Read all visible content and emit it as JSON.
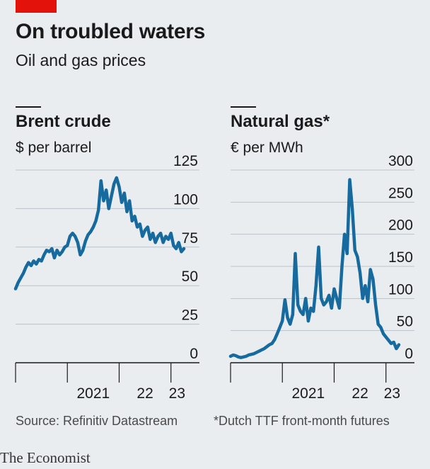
{
  "header": {
    "title": "On troubled waters",
    "subtitle": "Oil and gas prices"
  },
  "chart_data": [
    {
      "type": "line",
      "title": "Brent crude",
      "ylabel": "$ per barrel",
      "ylim": [
        0,
        125
      ],
      "yticks": [
        "125",
        "100",
        "75",
        "50",
        "25",
        "0"
      ],
      "xticks": [
        "2021",
        "22",
        "23"
      ],
      "series": [
        {
          "color": "#176a9e",
          "x": [
            2020.0,
            2020.05,
            2020.1,
            2020.15,
            2020.2,
            2020.25,
            2020.3,
            2020.35,
            2020.4,
            2020.45,
            2020.5,
            2020.55,
            2020.6,
            2020.65,
            2020.7,
            2020.75,
            2020.8,
            2020.85,
            2020.9,
            2020.95,
            2021.0,
            2021.05,
            2021.1,
            2021.15,
            2021.2,
            2021.25,
            2021.3,
            2021.35,
            2021.4,
            2021.45,
            2021.5,
            2021.55,
            2021.6,
            2021.65,
            2021.7,
            2021.75,
            2021.8,
            2021.85,
            2021.9,
            2021.95,
            2022.0,
            2022.05,
            2022.1,
            2022.15,
            2022.2,
            2022.25,
            2022.3,
            2022.35,
            2022.4,
            2022.45,
            2022.5,
            2022.55,
            2022.6,
            2022.65,
            2022.7,
            2022.75,
            2022.8,
            2022.85,
            2022.9,
            2022.95,
            2023.0,
            2023.05,
            2023.1,
            2023.15,
            2023.2,
            2023.25
          ],
          "values": [
            48,
            52,
            55,
            58,
            62,
            65,
            63,
            66,
            64,
            67,
            66,
            70,
            73,
            72,
            74,
            68,
            73,
            70,
            72,
            75,
            76,
            82,
            84,
            82,
            78,
            70,
            73,
            79,
            83,
            85,
            88,
            92,
            99,
            118,
            105,
            112,
            100,
            108,
            116,
            120,
            114,
            104,
            110,
            98,
            105,
            92,
            95,
            88,
            90,
            82,
            86,
            88,
            80,
            84,
            78,
            82,
            84,
            78,
            82,
            80,
            84,
            76,
            74,
            78,
            72,
            74
          ]
        }
      ]
    },
    {
      "type": "line",
      "title": "Natural gas*",
      "ylabel": "€ per MWh",
      "ylim": [
        0,
        300
      ],
      "yticks": [
        "300",
        "250",
        "200",
        "150",
        "100",
        "50",
        "0"
      ],
      "xticks": [
        "2021",
        "22",
        "23"
      ],
      "series": [
        {
          "color": "#176a9e",
          "x": [
            2020.0,
            2020.05,
            2020.1,
            2020.15,
            2020.2,
            2020.25,
            2020.3,
            2020.35,
            2020.4,
            2020.45,
            2020.5,
            2020.55,
            2020.6,
            2020.65,
            2020.7,
            2020.75,
            2020.8,
            2020.85,
            2020.9,
            2020.95,
            2021.0,
            2021.05,
            2021.1,
            2021.15,
            2021.2,
            2021.25,
            2021.3,
            2021.35,
            2021.4,
            2021.45,
            2021.5,
            2021.55,
            2021.6,
            2021.65,
            2021.7,
            2021.75,
            2021.8,
            2021.85,
            2021.9,
            2021.95,
            2022.0,
            2022.05,
            2022.1,
            2022.15,
            2022.2,
            2022.25,
            2022.3,
            2022.35,
            2022.4,
            2022.45,
            2022.5,
            2022.55,
            2022.6,
            2022.65,
            2022.7,
            2022.75,
            2022.8,
            2022.85,
            2022.9,
            2022.95,
            2023.0,
            2023.05,
            2023.1,
            2023.15,
            2023.2,
            2023.25
          ],
          "values": [
            10,
            12,
            11,
            9,
            8,
            9,
            10,
            12,
            13,
            14,
            16,
            18,
            20,
            22,
            25,
            28,
            30,
            36,
            45,
            55,
            65,
            98,
            70,
            60,
            75,
            170,
            90,
            80,
            75,
            100,
            65,
            85,
            80,
            120,
            180,
            100,
            90,
            95,
            105,
            85,
            115,
            100,
            85,
            150,
            200,
            170,
            285,
            240,
            175,
            165,
            140,
            100,
            120,
            95,
            145,
            130,
            90,
            60,
            55,
            45,
            40,
            35,
            30,
            32,
            22,
            28
          ]
        }
      ]
    }
  ],
  "footer": {
    "source": "Source: Refinitiv Datastream",
    "note": "*Dutch TTF front-month futures",
    "brand": "The Economist"
  }
}
